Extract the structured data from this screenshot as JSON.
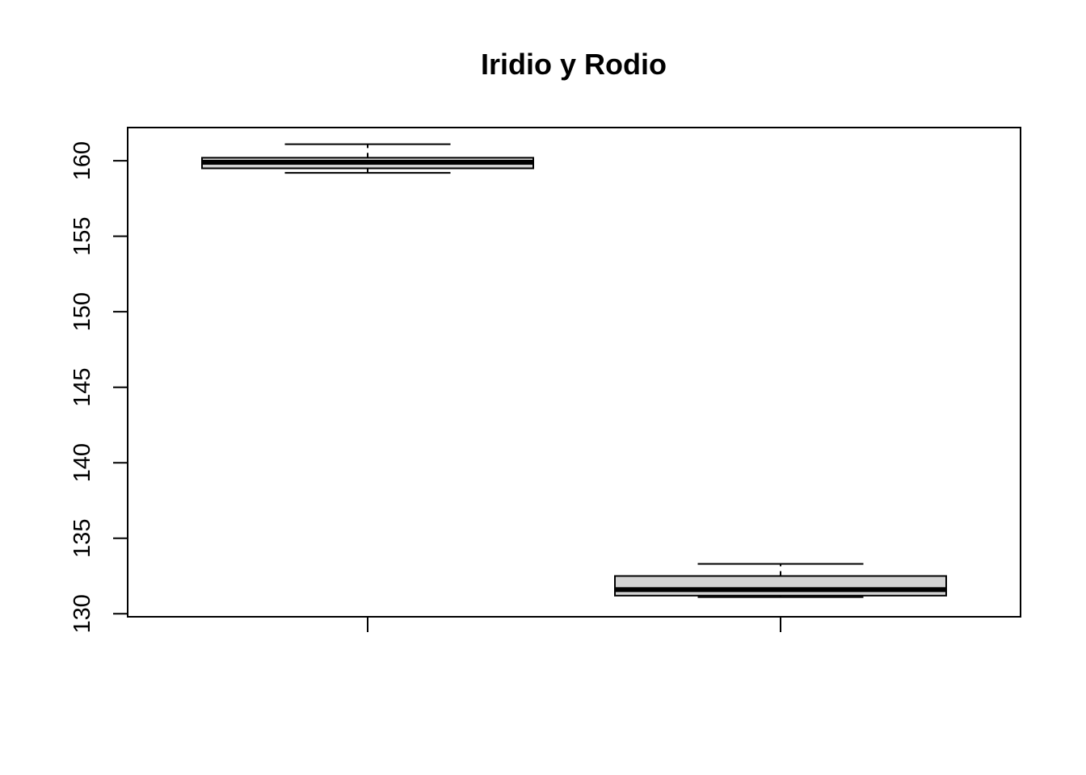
{
  "chart_data": {
    "type": "boxplot",
    "title": "Iridio y Rodio",
    "xlabel": "",
    "ylabel": "",
    "ylim": [
      129.8,
      162.2
    ],
    "yticks": [
      130,
      135,
      140,
      145,
      150,
      155,
      160
    ],
    "ytick_labels": [
      "130",
      "135",
      "140",
      "145",
      "150",
      "155",
      "160"
    ],
    "categories": [
      "",
      ""
    ],
    "box_fill": "#d3d3d3",
    "grid": false,
    "boxes": [
      {
        "min": 159.2,
        "q1": 159.5,
        "median": 159.9,
        "q3": 160.2,
        "max": 161.1
      },
      {
        "min": 131.1,
        "q1": 131.2,
        "median": 131.6,
        "q3": 132.5,
        "max": 133.3
      }
    ]
  }
}
